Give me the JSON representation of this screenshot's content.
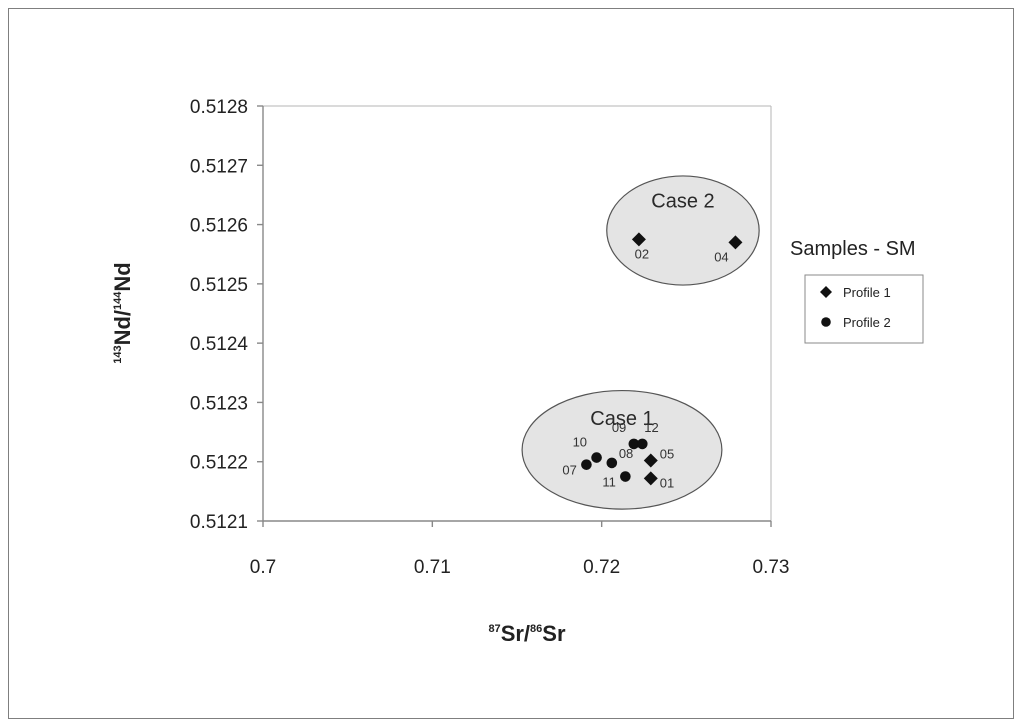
{
  "chart_data": {
    "type": "scatter",
    "x_axis": {
      "title": {
        "sup": "87",
        "a": "Sr/",
        "sup2": "86",
        "b": "Sr"
      },
      "range": [
        0.7,
        0.73
      ],
      "ticks": [
        "0.7",
        "0.71",
        "0.72",
        "0.73"
      ]
    },
    "y_axis": {
      "title": {
        "sup": "143",
        "a": "Nd/",
        "sup2": "144",
        "b": "Nd"
      },
      "range": [
        0.5121,
        0.5128
      ],
      "ticks": [
        "0.5121",
        "0.5122",
        "0.5123",
        "0.5124",
        "0.5125",
        "0.5126",
        "0.5127",
        "0.5128"
      ]
    },
    "grid": false,
    "legend": {
      "title": "Samples - SM",
      "placement": "right",
      "entries": [
        {
          "name": "Profile 1",
          "marker": "diamond"
        },
        {
          "name": "Profile 2",
          "marker": "circle"
        }
      ]
    },
    "series": [
      {
        "name": "Profile 1",
        "marker": "diamond",
        "points": [
          {
            "label": "02",
            "x": 0.7222,
            "y": 0.512575
          },
          {
            "label": "04",
            "x": 0.7279,
            "y": 0.51257
          },
          {
            "label": "05",
            "x": 0.7229,
            "y": 0.512202
          },
          {
            "label": "01",
            "x": 0.7229,
            "y": 0.512172
          }
        ]
      },
      {
        "name": "Profile 2",
        "marker": "circle",
        "points": [
          {
            "label": "07",
            "x": 0.7191,
            "y": 0.512195
          },
          {
            "label": "10",
            "x": 0.7197,
            "y": 0.512207
          },
          {
            "label": "08",
            "x": 0.7206,
            "y": 0.512198
          },
          {
            "label": "11",
            "x": 0.7214,
            "y": 0.512175
          },
          {
            "label": "09",
            "x": 0.7219,
            "y": 0.51223
          },
          {
            "label": "12",
            "x": 0.7224,
            "y": 0.51223
          }
        ]
      }
    ],
    "annotations": [
      {
        "text": "Case 1",
        "shape": "ellipse",
        "cx": 0.7212,
        "cy": 0.51222,
        "rx": 0.0059,
        "ry": 0.0001
      },
      {
        "text": "Case 2",
        "shape": "ellipse",
        "cx": 0.7248,
        "cy": 0.51259,
        "rx": 0.0045,
        "ry": 9.2e-05
      }
    ],
    "colors": {
      "marker": "#111111",
      "ellipse_fill": "#e4e4e4",
      "ellipse_stroke": "#555555",
      "axis": "#888888"
    }
  }
}
